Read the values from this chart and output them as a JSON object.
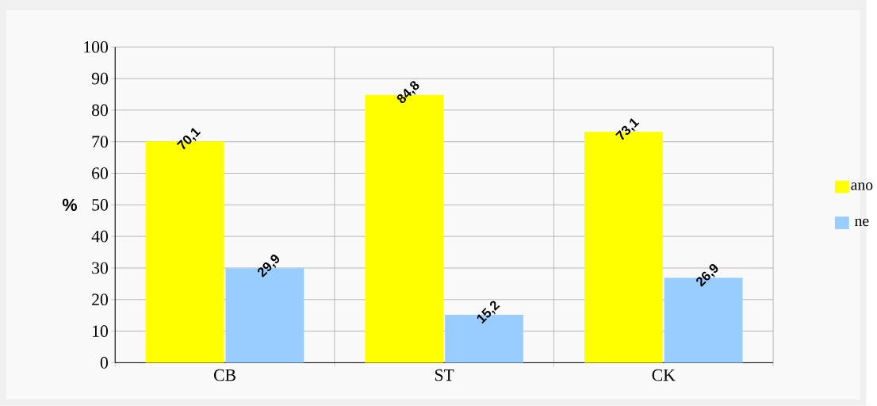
{
  "chart_data": {
    "type": "bar",
    "ylabel": "%",
    "categories": [
      "CB",
      "ST",
      "CK"
    ],
    "series": [
      {
        "name": "ano",
        "color": "#ffff00",
        "values": [
          70.1,
          84.8,
          73.1
        ],
        "value_labels": [
          "70,1",
          "84,8",
          "73,1"
        ]
      },
      {
        "name": "ne",
        "color": "#99ccff",
        "values": [
          29.9,
          15.2,
          26.9
        ],
        "value_labels": [
          "29,9",
          "15,2",
          "26,9"
        ]
      }
    ],
    "ylim": [
      0,
      100
    ],
    "yticks": [
      0,
      10,
      20,
      30,
      40,
      50,
      60,
      70,
      80,
      90,
      100
    ],
    "grid": true,
    "legend": "right"
  }
}
